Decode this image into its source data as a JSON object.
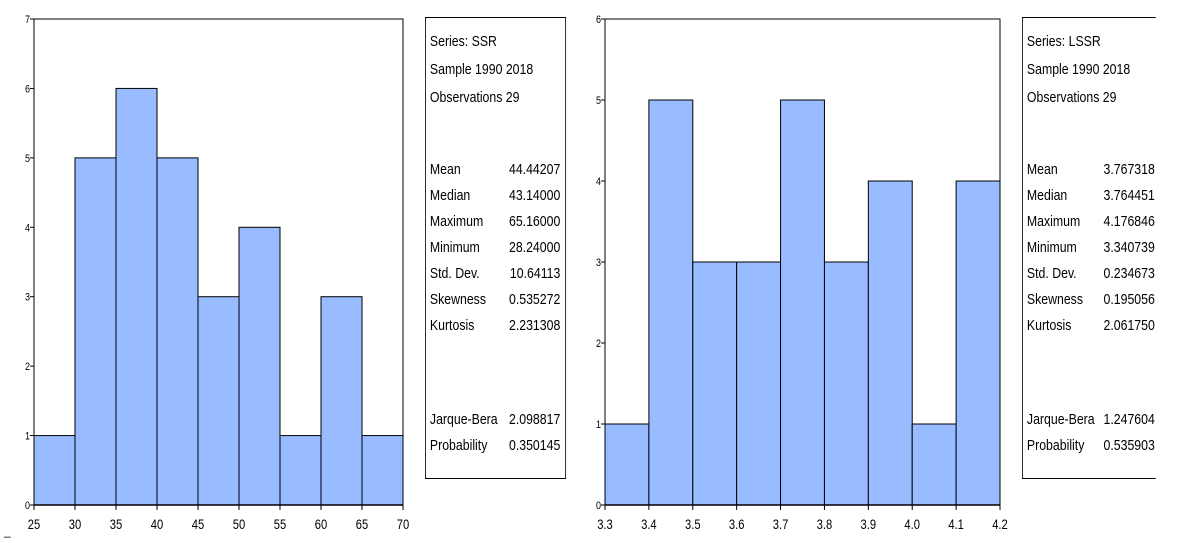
{
  "chart_data": [
    {
      "type": "bar",
      "subtype": "histogram",
      "bin_edges": [
        25,
        30,
        35,
        40,
        45,
        50,
        55,
        60,
        65,
        70
      ],
      "values": [
        1,
        5,
        6,
        5,
        3,
        4,
        1,
        3,
        1
      ],
      "xlim": [
        25,
        70
      ],
      "ylim": [
        0,
        7
      ],
      "xticks": [
        "25",
        "30",
        "35",
        "40",
        "45",
        "50",
        "55",
        "60",
        "65",
        "70"
      ],
      "yticks": [
        "0",
        "1",
        "2",
        "3",
        "4",
        "5",
        "6",
        "7"
      ],
      "bar_color": "#99BBFF",
      "grid": false,
      "stats": {
        "header": [
          "Series: SSR",
          "Sample 1990 2018",
          "Observations 29"
        ],
        "rows": [
          {
            "label": "Mean",
            "value": "44.44207"
          },
          {
            "label": "Median",
            "value": "43.14000"
          },
          {
            "label": "Maximum",
            "value": "65.16000"
          },
          {
            "label": "Minimum",
            "value": "28.24000"
          },
          {
            "label": "Std. Dev.",
            "value": "10.64113"
          },
          {
            "label": "Skewness",
            "value": "0.535272"
          },
          {
            "label": "Kurtosis",
            "value": "2.231308"
          }
        ],
        "test_rows": [
          {
            "label": "Jarque-Bera",
            "value": "2.098817"
          },
          {
            "label": "Probability",
            "value": "0.350145"
          }
        ]
      }
    },
    {
      "type": "bar",
      "subtype": "histogram",
      "bin_edges": [
        3.3,
        3.4,
        3.5,
        3.6,
        3.7,
        3.8,
        3.9,
        4.0,
        4.1,
        4.2
      ],
      "values": [
        1,
        5,
        3,
        3,
        5,
        3,
        4,
        1,
        4
      ],
      "xlim": [
        3.3,
        4.2
      ],
      "ylim": [
        0,
        6
      ],
      "xticks": [
        "3.3",
        "3.4",
        "3.5",
        "3.6",
        "3.7",
        "3.8",
        "3.9",
        "4.0",
        "4.1",
        "4.2"
      ],
      "yticks": [
        "0",
        "1",
        "2",
        "3",
        "4",
        "5",
        "6"
      ],
      "bar_color": "#99BBFF",
      "grid": false,
      "stats": {
        "header": [
          "Series: LSSR",
          "Sample 1990 2018",
          "Observations 29"
        ],
        "rows": [
          {
            "label": "Mean",
            "value": "3.767318"
          },
          {
            "label": "Median",
            "value": "3.764451"
          },
          {
            "label": "Maximum",
            "value": "4.176846"
          },
          {
            "label": "Minimum",
            "value": "3.340739"
          },
          {
            "label": "Std. Dev.",
            "value": "0.234673"
          },
          {
            "label": "Skewness",
            "value": "0.195056"
          },
          {
            "label": "Kurtosis",
            "value": "2.061750"
          }
        ],
        "test_rows": [
          {
            "label": "Jarque-Bera",
            "value": "1.247604"
          },
          {
            "label": "Probability",
            "value": "0.535903"
          }
        ]
      }
    }
  ],
  "corner_mark": "_"
}
